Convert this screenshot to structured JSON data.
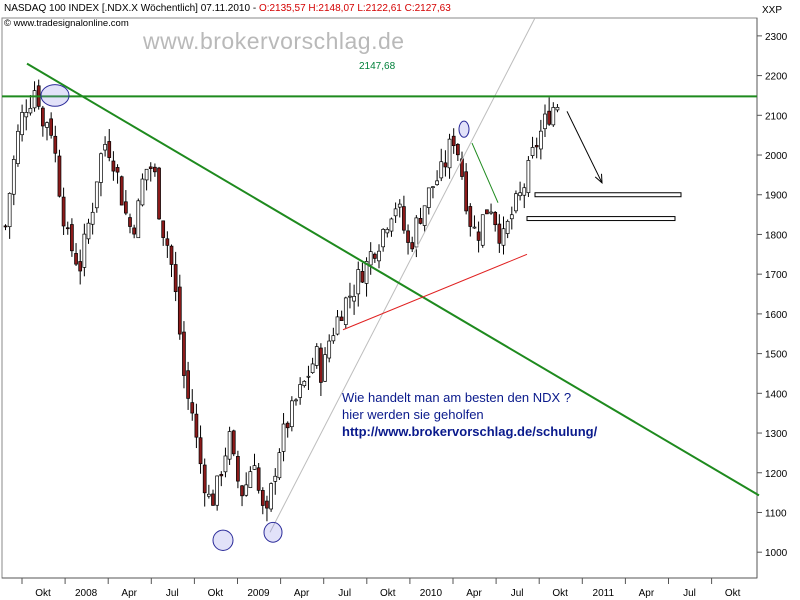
{
  "header": {
    "symbol_text": "NASDAQ 100 INDEX [.NDX.X  Wöchentlich] 07.11.2010 - ",
    "ohlc_text": "O:2135,57 H:2148,07 L:2122,61 C:2127,63",
    "source_text": "© www.tradesignalonline.com",
    "watermark": "www.brokervorschlag.de",
    "y_unit": "XXP"
  },
  "annotation": {
    "line1": "Wie handelt man am besten den NDX ?",
    "line2": "hier werden sie geholfen",
    "line3": "http://www.brokervorschlag.de/schulung/"
  },
  "colors": {
    "bull_candle": "#ffffff",
    "bear_candle": "#8b1a1a",
    "trend_green": "#1e8a1e",
    "support_red": "#e02020",
    "channel_gray": "#bdbdbd",
    "annotation_blue": "#0a1a8c"
  },
  "chart_data": {
    "type": "candlestick",
    "title": "NASDAQ 100 INDEX [.NDX.X Wöchentlich]",
    "ylim": [
      935,
      2345
    ],
    "y_ticks": [
      1000,
      1100,
      1200,
      1300,
      1400,
      1500,
      1600,
      1700,
      1800,
      1900,
      2000,
      2100,
      2200,
      2300
    ],
    "x_ticks": [
      "Okt",
      "2008",
      "Apr",
      "Jul",
      "Okt",
      "2009",
      "Apr",
      "Jul",
      "Okt",
      "2010",
      "Apr",
      "Jul",
      "Okt",
      "2011",
      "Apr",
      "Jul",
      "Okt"
    ],
    "grid": false,
    "resistance": {
      "value": 2147.68,
      "label": "2147,68"
    },
    "close_path": [
      [
        0,
        1820
      ],
      [
        4,
        1950
      ],
      [
        8,
        2050
      ],
      [
        12,
        2120
      ],
      [
        16,
        2140
      ],
      [
        20,
        2180
      ],
      [
        24,
        2070
      ],
      [
        28,
        2100
      ],
      [
        32,
        2000
      ],
      [
        36,
        1880
      ],
      [
        40,
        1790
      ],
      [
        44,
        1750
      ],
      [
        48,
        1720
      ],
      [
        52,
        1800
      ],
      [
        56,
        1870
      ],
      [
        60,
        1980
      ],
      [
        64,
        2030
      ],
      [
        68,
        2010
      ],
      [
        72,
        1950
      ],
      [
        76,
        1870
      ],
      [
        80,
        1820
      ],
      [
        84,
        1830
      ],
      [
        88,
        1930
      ],
      [
        92,
        1980
      ],
      [
        96,
        1950
      ],
      [
        100,
        1830
      ],
      [
        104,
        1780
      ],
      [
        108,
        1700
      ],
      [
        112,
        1560
      ],
      [
        116,
        1400
      ],
      [
        120,
        1360
      ],
      [
        124,
        1250
      ],
      [
        128,
        1180
      ],
      [
        132,
        1120
      ],
      [
        136,
        1160
      ],
      [
        140,
        1230
      ],
      [
        144,
        1290
      ],
      [
        148,
        1200
      ],
      [
        152,
        1150
      ],
      [
        156,
        1180
      ],
      [
        160,
        1250
      ],
      [
        164,
        1120
      ],
      [
        168,
        1080
      ],
      [
        172,
        1180
      ],
      [
        176,
        1260
      ],
      [
        180,
        1310
      ],
      [
        184,
        1350
      ],
      [
        188,
        1390
      ],
      [
        192,
        1420
      ],
      [
        196,
        1460
      ],
      [
        200,
        1500
      ],
      [
        204,
        1440
      ],
      [
        208,
        1530
      ],
      [
        212,
        1570
      ],
      [
        216,
        1610
      ],
      [
        220,
        1640
      ],
      [
        224,
        1660
      ],
      [
        228,
        1700
      ],
      [
        232,
        1720
      ],
      [
        236,
        1760
      ],
      [
        240,
        1780
      ],
      [
        244,
        1820
      ],
      [
        248,
        1860
      ],
      [
        252,
        1880
      ],
      [
        256,
        1820
      ],
      [
        260,
        1760
      ],
      [
        264,
        1820
      ],
      [
        268,
        1860
      ],
      [
        272,
        1900
      ],
      [
        276,
        1930
      ],
      [
        280,
        1950
      ],
      [
        284,
        1990
      ],
      [
        288,
        2050
      ],
      [
        292,
        2000
      ],
      [
        296,
        1900
      ],
      [
        300,
        1820
      ],
      [
        304,
        1800
      ],
      [
        308,
        1850
      ],
      [
        312,
        1880
      ],
      [
        316,
        1830
      ],
      [
        320,
        1780
      ],
      [
        324,
        1830
      ],
      [
        328,
        1870
      ],
      [
        332,
        1900
      ],
      [
        336,
        1950
      ],
      [
        340,
        2010
      ],
      [
        344,
        2050
      ],
      [
        348,
        2090
      ],
      [
        352,
        2120
      ],
      [
        356,
        2130
      ]
    ],
    "annotations": {
      "downtrend_line": [
        [
          27,
          2230
        ],
        [
          759,
          1143
        ]
      ],
      "support_line": [
        [
          343,
          1560
        ],
        [
          527,
          1750
        ]
      ],
      "channel_line": [
        [
          270,
          1050
        ],
        [
          535,
          2345
        ]
      ],
      "short_green": [
        [
          472,
          2030
        ],
        [
          498,
          1880
        ]
      ],
      "box_upper": [
        [
          535,
          1905
        ],
        [
          681,
          1895
        ]
      ],
      "box_lower": [
        [
          527,
          1845
        ],
        [
          675,
          1835
        ]
      ],
      "arrow": [
        [
          567,
          2110
        ],
        [
          602,
          1930
        ]
      ],
      "ellipses": [
        {
          "cx": 55,
          "cy": 2150,
          "rx": 14,
          "ry": 35
        },
        {
          "cx": 223,
          "cy": 1030,
          "rx": 10,
          "ry": 30
        },
        {
          "cx": 273,
          "cy": 1050,
          "rx": 9,
          "ry": 28
        },
        {
          "cx": 464,
          "cy": 2065,
          "rx": 5,
          "ry": 15
        }
      ]
    }
  }
}
